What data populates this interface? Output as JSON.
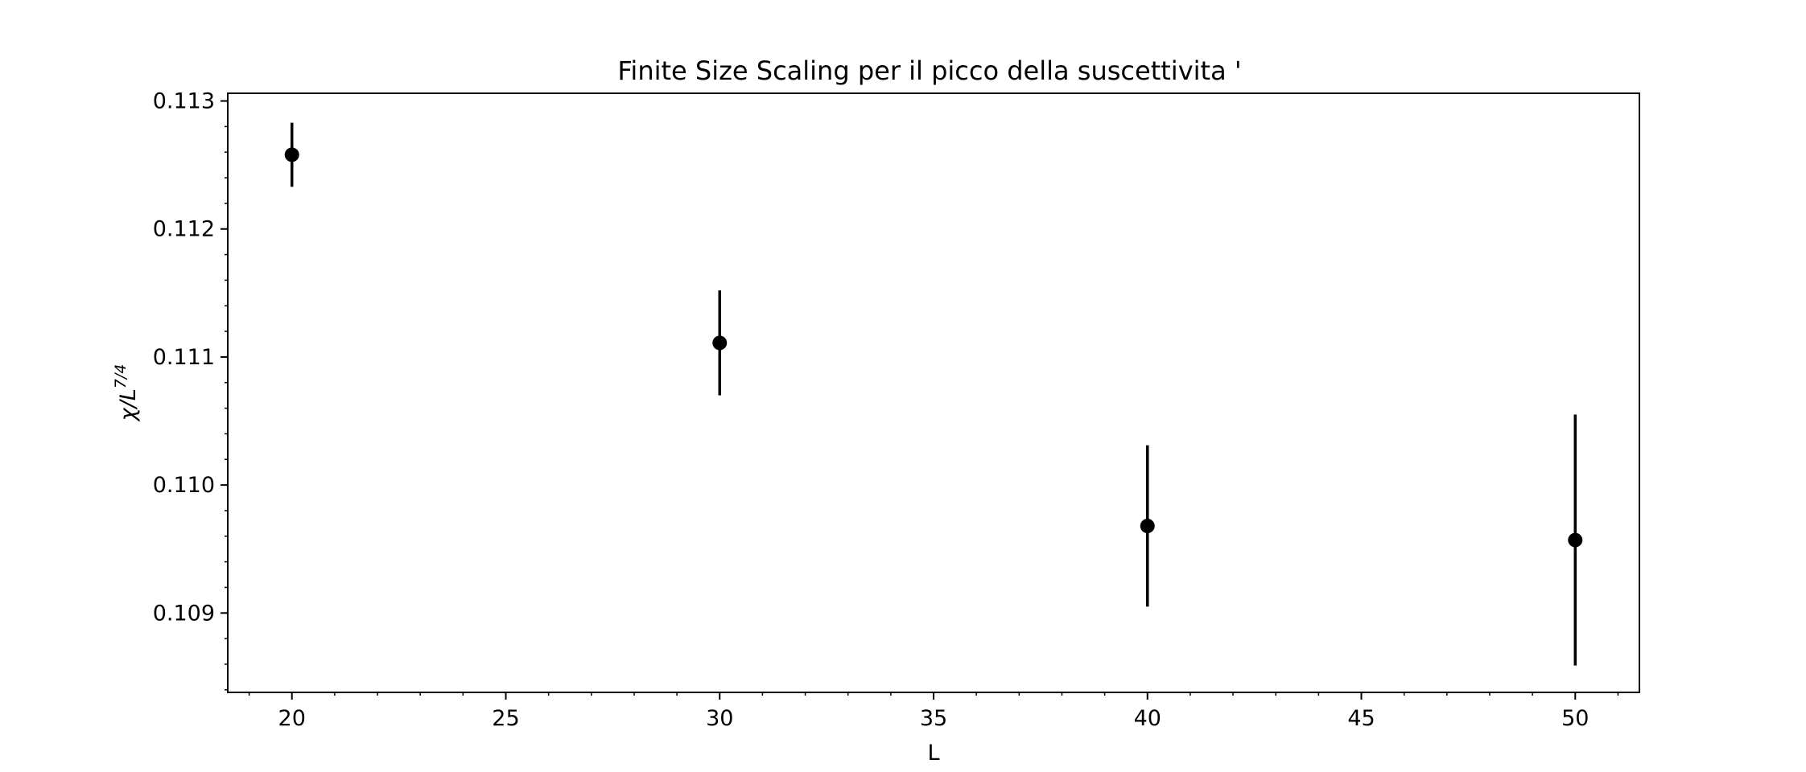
{
  "chart_data": {
    "type": "scatter",
    "title": "Finite Size Scaling per il picco della suscettivita '",
    "xlabel": "L",
    "ylabel": {
      "base": "χ/L",
      "exponent": "7/4"
    },
    "xlim": [
      18.5,
      51.5
    ],
    "ylim": [
      0.10838,
      0.11306
    ],
    "x_ticks": [
      20,
      25,
      30,
      35,
      40,
      45,
      50
    ],
    "x_tick_labels": [
      "20",
      "25",
      "30",
      "35",
      "40",
      "45",
      "50"
    ],
    "y_ticks": [
      0.109,
      0.11,
      0.111,
      0.112,
      0.113
    ],
    "y_tick_labels": [
      "0.109",
      "0.110",
      "0.111",
      "0.112",
      "0.113"
    ],
    "x_minor_step": 1,
    "y_minor_step": 0.0002,
    "grid": false,
    "series": [
      {
        "marker": "circle",
        "color": "#000000",
        "x": [
          20,
          30,
          40,
          50
        ],
        "y": [
          0.11258,
          0.11111,
          0.10968,
          0.10957
        ],
        "yerr": [
          0.00025,
          0.00041,
          0.00063,
          0.00098
        ]
      }
    ]
  }
}
